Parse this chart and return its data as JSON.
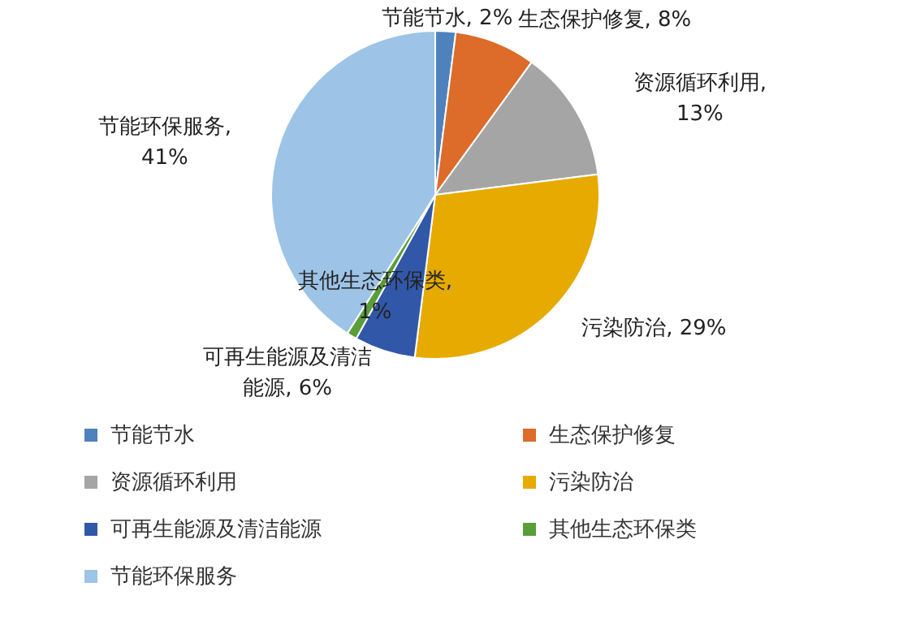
{
  "chart_data": {
    "type": "pie",
    "categories": [
      "节能节水",
      "生态保护修复",
      "资源循环利用",
      "污染防治",
      "可再生能源及清洁能源",
      "其他生态环保类",
      "节能环保服务"
    ],
    "values": [
      2,
      8,
      13,
      29,
      6,
      1,
      41
    ],
    "colors": [
      "#4f81bd",
      "#dd6b2a",
      "#a5a5a5",
      "#e6aa00",
      "#3158a8",
      "#5a9e3a",
      "#9dc3e6"
    ],
    "value_labels": [
      "节能节水, 2%",
      "生态保护修复, 8%",
      "资源循环利用, 13%",
      "污染防治, 29%",
      "可再生能源及清洁能源, 6%",
      "其他生态环保类, 1%",
      "节能环保服务, 41%"
    ],
    "legend": "bottom"
  }
}
